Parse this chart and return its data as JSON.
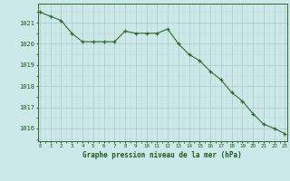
{
  "x": [
    0,
    1,
    2,
    3,
    4,
    5,
    6,
    7,
    8,
    9,
    10,
    11,
    12,
    13,
    14,
    15,
    16,
    17,
    18,
    19,
    20,
    21,
    22,
    23
  ],
  "y": [
    1021.5,
    1021.3,
    1021.1,
    1020.5,
    1020.1,
    1020.1,
    1020.1,
    1020.1,
    1020.6,
    1020.5,
    1020.5,
    1020.5,
    1020.7,
    1020.0,
    1019.5,
    1019.2,
    1018.7,
    1018.3,
    1017.7,
    1017.3,
    1016.7,
    1016.2,
    1016.0,
    1015.75
  ],
  "line_color": "#2d6a2d",
  "marker": "+",
  "bg_color": "#cce8e8",
  "grid_color_major": "#aac8c8",
  "grid_color_minor": "#bbdada",
  "xlabel": "Graphe pression niveau de la mer (hPa)",
  "xlabel_color": "#1a5c1a",
  "tick_label_color": "#1a5c1a",
  "ytick_labels": [
    1016,
    1017,
    1018,
    1019,
    1020,
    1021
  ],
  "xtick_labels": [
    0,
    1,
    2,
    3,
    4,
    5,
    6,
    7,
    8,
    9,
    10,
    11,
    12,
    13,
    14,
    15,
    16,
    17,
    18,
    19,
    20,
    21,
    22,
    23
  ],
  "ylim": [
    1015.4,
    1021.9
  ],
  "xlim": [
    -0.2,
    23.2
  ]
}
